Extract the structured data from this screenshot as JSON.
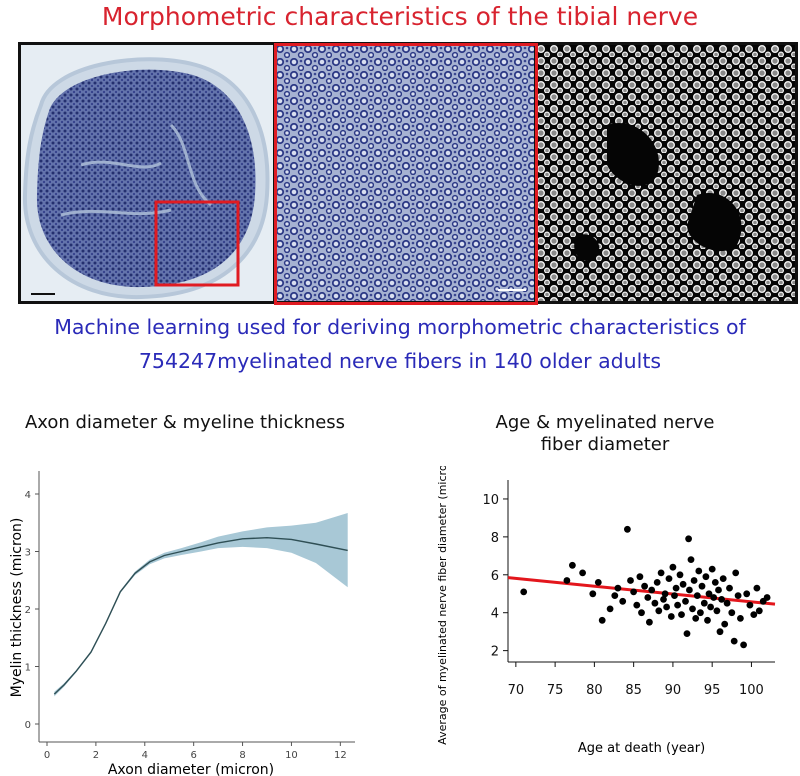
{
  "main_title": "Morphometric characteristics of the tibial nerve",
  "subtitle_line1": "Machine learning used for deriving morphometric characteristics of",
  "subtitle_line2": "754247myelinated nerve fibers in 140 older adults",
  "colors": {
    "title": "#d8232f",
    "subtitle": "#2a2ab8",
    "highlight_box": "#e01b22",
    "stain_dark": "#2d3a86",
    "ci_band": "#a8c8d6",
    "fit_line": "#2f4f55",
    "regression_line": "#e3161c",
    "points": "#000000"
  },
  "chart_data": [
    {
      "type": "line",
      "title": "Axon diameter & myeline thickness",
      "xlabel": "Axon diameter (micron)",
      "ylabel": "Myelin thickness (micron)",
      "xlim": [
        0,
        12.6
      ],
      "ylim": [
        0,
        4.4
      ],
      "xticks": [
        "0",
        "2",
        "4",
        "6",
        "8",
        "10",
        "12"
      ],
      "yticks": [
        "0",
        "1",
        "2",
        "3",
        "4"
      ],
      "grid": false,
      "series": [
        {
          "x": [
            0.3,
            0.7,
            1.2,
            1.8,
            2.4,
            3.0,
            3.6,
            4.2,
            4.8,
            5.5,
            6.3,
            7.0,
            8.0,
            9.0,
            10.0,
            11.0,
            12.3
          ],
          "values": [
            0.52,
            0.68,
            0.92,
            1.25,
            1.75,
            2.3,
            2.62,
            2.82,
            2.93,
            3.0,
            3.08,
            3.15,
            3.22,
            3.24,
            3.21,
            3.13,
            3.02
          ],
          "lower": [
            0.48,
            0.65,
            0.9,
            1.23,
            1.73,
            2.28,
            2.59,
            2.78,
            2.88,
            2.94,
            3.0,
            3.06,
            3.08,
            3.06,
            2.98,
            2.8,
            2.38
          ],
          "upper": [
            0.56,
            0.71,
            0.94,
            1.27,
            1.77,
            2.32,
            2.65,
            2.86,
            2.98,
            3.06,
            3.16,
            3.26,
            3.35,
            3.42,
            3.45,
            3.5,
            3.67
          ]
        }
      ]
    },
    {
      "type": "scatter",
      "title_line1": "Age & myelinated nerve",
      "title_line2": "fiber diameter",
      "xlabel": "Age at death (year)",
      "ylabel": "Average of myelinated nerve fiber diameter (micron)",
      "xlim": [
        69,
        103
      ],
      "ylim": [
        1.4,
        11
      ],
      "xticks": [
        70,
        75,
        80,
        85,
        90,
        95,
        100
      ],
      "yticks": [
        2,
        4,
        6,
        8,
        10
      ],
      "regression": {
        "x": [
          69,
          103
        ],
        "y": [
          5.85,
          4.45
        ]
      },
      "points": [
        [
          71,
          5.1
        ],
        [
          76.5,
          5.7
        ],
        [
          77.2,
          6.5
        ],
        [
          78.5,
          6.1
        ],
        [
          80.5,
          5.6
        ],
        [
          79.8,
          5.0
        ],
        [
          81,
          3.6
        ],
        [
          82,
          4.2
        ],
        [
          82.6,
          4.9
        ],
        [
          83,
          5.3
        ],
        [
          83.6,
          4.6
        ],
        [
          84.2,
          8.4
        ],
        [
          84.6,
          5.7
        ],
        [
          85,
          5.1
        ],
        [
          85.4,
          4.4
        ],
        [
          85.8,
          5.9
        ],
        [
          86,
          4.0
        ],
        [
          86.4,
          5.4
        ],
        [
          86.8,
          4.8
        ],
        [
          87,
          3.5
        ],
        [
          87.3,
          5.2
        ],
        [
          87.7,
          4.5
        ],
        [
          88,
          5.6
        ],
        [
          88.2,
          4.1
        ],
        [
          88.5,
          6.1
        ],
        [
          88.8,
          4.7
        ],
        [
          89,
          5.0
        ],
        [
          89.2,
          4.3
        ],
        [
          89.5,
          5.8
        ],
        [
          89.8,
          3.8
        ],
        [
          90,
          6.4
        ],
        [
          90.2,
          4.9
        ],
        [
          90.4,
          5.3
        ],
        [
          90.6,
          4.4
        ],
        [
          90.9,
          6.0
        ],
        [
          91.1,
          3.9
        ],
        [
          91.3,
          5.5
        ],
        [
          91.6,
          4.6
        ],
        [
          91.8,
          2.9
        ],
        [
          92,
          7.9
        ],
        [
          92.1,
          5.2
        ],
        [
          92.3,
          6.8
        ],
        [
          92.5,
          4.2
        ],
        [
          92.7,
          5.7
        ],
        [
          92.9,
          3.7
        ],
        [
          93.1,
          4.9
        ],
        [
          93.3,
          6.2
        ],
        [
          93.5,
          4.0
        ],
        [
          93.7,
          5.4
        ],
        [
          94,
          4.5
        ],
        [
          94.2,
          5.9
        ],
        [
          94.4,
          3.6
        ],
        [
          94.6,
          5.0
        ],
        [
          94.8,
          4.3
        ],
        [
          95,
          6.3
        ],
        [
          95.2,
          4.8
        ],
        [
          95.4,
          5.6
        ],
        [
          95.6,
          4.1
        ],
        [
          95.8,
          5.2
        ],
        [
          96,
          3.0
        ],
        [
          96.2,
          4.7
        ],
        [
          96.4,
          5.8
        ],
        [
          96.6,
          3.4
        ],
        [
          96.9,
          4.5
        ],
        [
          97.2,
          5.3
        ],
        [
          97.5,
          4.0
        ],
        [
          97.8,
          2.5
        ],
        [
          98,
          6.1
        ],
        [
          98.3,
          4.9
        ],
        [
          98.6,
          3.7
        ],
        [
          99,
          2.3
        ],
        [
          99.4,
          5.0
        ],
        [
          99.8,
          4.4
        ],
        [
          100.3,
          3.9
        ],
        [
          100.7,
          5.3
        ],
        [
          101,
          4.1
        ],
        [
          101.5,
          4.6
        ],
        [
          102,
          4.8
        ]
      ]
    }
  ]
}
